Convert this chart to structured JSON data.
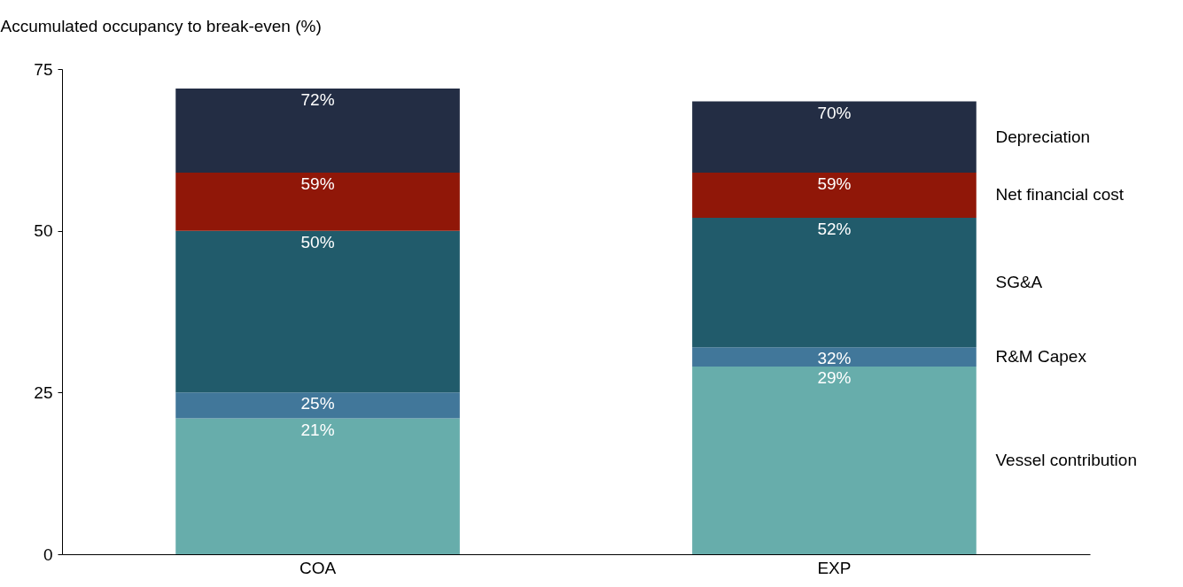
{
  "chart_data": {
    "type": "bar",
    "stacked": true,
    "ylabel": "Accumulated occupancy to break-even (%)",
    "categories": [
      "COA",
      "EXP"
    ],
    "series": [
      {
        "name": "Vessel contribution",
        "color": "#67adab",
        "values": [
          21,
          29
        ]
      },
      {
        "name": "R&M Capex",
        "color": "#41779a",
        "values": [
          4,
          3
        ]
      },
      {
        "name": "SG&A",
        "color": "#215b6b",
        "values": [
          25,
          20
        ]
      },
      {
        "name": "Net financial cost",
        "color": "#901708",
        "values": [
          9,
          7
        ]
      },
      {
        "name": "Depreciation",
        "color": "#232d44",
        "values": [
          13,
          11
        ]
      }
    ],
    "annotations": [
      {
        "text": "21%",
        "x": "COA",
        "y": 21
      },
      {
        "text": "25%",
        "x": "COA",
        "y": 25
      },
      {
        "text": "50%",
        "x": "COA",
        "y": 50
      },
      {
        "text": "59%",
        "x": "COA",
        "y": 59
      },
      {
        "text": "72%",
        "x": "COA",
        "y": 72
      },
      {
        "text": "29%",
        "x": "EXP",
        "y": 29
      },
      {
        "text": "32%",
        "x": "EXP",
        "y": 32
      },
      {
        "text": "52%",
        "x": "EXP",
        "y": 52
      },
      {
        "text": "59%",
        "x": "EXP",
        "y": 59
      },
      {
        "text": "70%",
        "x": "EXP",
        "y": 70
      }
    ],
    "ylim": [
      0,
      75
    ],
    "yticks": [
      0,
      25,
      50,
      75
    ],
    "grid": false,
    "legend": "right"
  }
}
